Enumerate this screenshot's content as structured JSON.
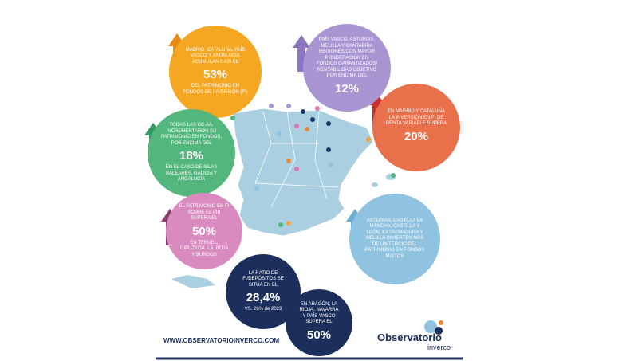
{
  "bubbles": [
    {
      "lead": "MADRID, CATALUÑA, PAÍS VASCO Y ANDALUCÍA ACUMULAN CASI EL",
      "value": "53%",
      "trail": "DEL PATRIMONIO EN FONDOS DE INVERSIÓN (FI)"
    },
    {
      "lead": "PAÍS VASCO, ASTURIAS, MELILLA Y CANTABRIA REGIONES CON MAYOR PONDERACIÓN EN FONDOS GARANTIZADOS/ RENTABILIDAD OBJETIVO POR ENCIMA DEL",
      "value": "12%"
    },
    {
      "lead": "EN MADRID Y CATALUÑA LA INVERSIÓN EN FI DE RENTA VARIABLE SUPERA",
      "value": "20%"
    },
    {
      "lead": "TODAS LAS CC.AA. INCREMENTARON SU PATRIMONIO EN FONDOS, POR ENCIMA DEL",
      "value": "18%",
      "trail": "EN EL CASO DE ISLAS BALEARES, GALICIA Y ANDALUCÍA"
    },
    {
      "lead": "EL PATRIMONIO EN FI SOBRE EL PIB SUPERA EL",
      "value": "50%",
      "trail": "EN TERUEL, GIPUZKOA, LA RIOJA Y BURGOS"
    },
    {
      "lead": "ASTURIAS, CASTILLA LA MANCHA, CASTILLA Y LEÓN, EXTREMADURA Y MELILLA INVIERTEN MÁS DE UN TERCIO DEL PATRIMONIO EN FONDOS MIXTOS"
    },
    {
      "lead": "LA RATIO DE FI/DEPÓSITOS SE SITÚA EN EL",
      "value": "28,4%",
      "trail": "VS. 26% de 2023"
    },
    {
      "lead": "EN ARAGÓN, LA RIOJA, NAVARRA Y PAÍS VASCO SUPERA EL",
      "value": "50%"
    }
  ],
  "footer": {
    "url": "WWW.OBSERVATORIOINVERCO.COM",
    "logo_main": "Observatorio",
    "logo_sub": "inverco"
  }
}
